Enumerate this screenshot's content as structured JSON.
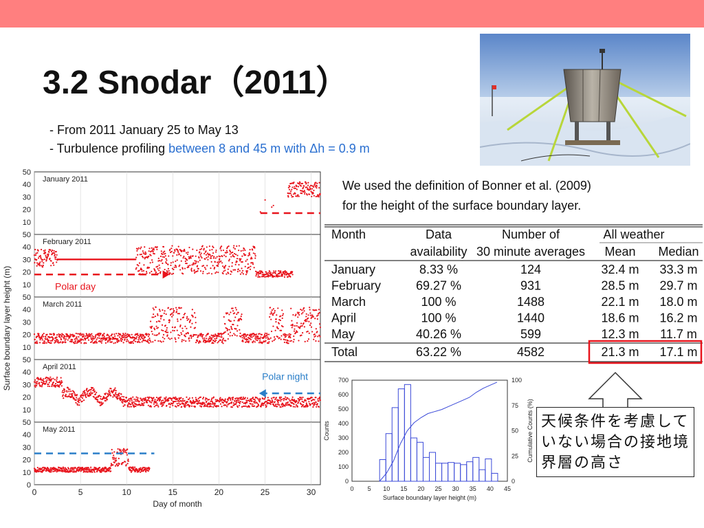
{
  "slide": {
    "title": "3.2 Snodar（2011）",
    "bullet1": "- From 2011 January 25 to May 13",
    "bullet2_prefix": "- Turbulence profiling ",
    "bullet2_accent": "between 8 and 45 m with Δh = 0.9 m",
    "note_line1": "We used the definition of Bonner et al. (2009)",
    "note_line2": "for the height of the surface boundary layer.",
    "callout": "天候条件を考慮していない場合の接地境界層の高さ",
    "colors": {
      "header": "#ff7f7f",
      "accent": "#2a6fd0",
      "data": "#e8141c",
      "callout_box": "#e8141c"
    }
  },
  "table": {
    "headers": {
      "month": "Month",
      "data_top": "Data",
      "data_bottom": "availability",
      "num_top": "Number of",
      "num_bottom": "30 minute averages",
      "all_weather": "All weather",
      "mean": "Mean",
      "median": "Median"
    },
    "rows": [
      [
        "January",
        "8.33 %",
        "124",
        "32.4 m",
        "33.3 m"
      ],
      [
        "February",
        "69.27 %",
        "931",
        "28.5 m",
        "29.7 m"
      ],
      [
        "March",
        "100 %",
        "1488",
        "22.1 m",
        "18.0 m"
      ],
      [
        "April",
        "100 %",
        "1440",
        "18.6 m",
        "16.2 m"
      ],
      [
        "May",
        "40.26 %",
        "599",
        "12.3 m",
        "11.7 m"
      ]
    ],
    "total": [
      "Total",
      "63.22 %",
      "4582",
      "21.3 m",
      "17.1 m"
    ]
  },
  "chart_data": [
    {
      "type": "scatter",
      "ylabel": "Surface boundary layer height (m)",
      "xlabel": "Day of month",
      "xlim": [
        0,
        31
      ],
      "ylim": [
        0,
        50
      ],
      "x_ticks": [
        "0",
        "5",
        "10",
        "15",
        "20",
        "25",
        "30"
      ],
      "y_ticks": [
        "0",
        "10",
        "20",
        "30",
        "40",
        "50"
      ],
      "annotations": {
        "polar_day": "Polar day",
        "polar_night": "Polar night"
      },
      "panels": [
        {
          "name": "January 2011",
          "range": [
            24.5,
            31
          ],
          "dashed_line": {
            "y": 17,
            "x": [
              24.5,
              31
            ],
            "color": "#e8141c"
          }
        },
        {
          "name": "February 2011",
          "range": [
            0,
            28
          ],
          "dashed_line": {
            "y": 18,
            "x": [
              0,
              14.5
            ],
            "color": "#e8141c"
          }
        },
        {
          "name": "March 2011",
          "range": [
            0,
            31
          ]
        },
        {
          "name": "April 2011",
          "range": [
            0,
            31
          ],
          "dashed_line": {
            "y": 23,
            "x": [
              24.5,
              31
            ],
            "color": "#2a7ec8"
          }
        },
        {
          "name": "May 2011",
          "range": [
            0,
            12.5
          ],
          "dashed_line": {
            "y": 25,
            "x": [
              0,
              13
            ],
            "color": "#2a7ec8"
          }
        }
      ]
    },
    {
      "type": "bar",
      "xlabel": "Surface boundary layer height (m)",
      "ylabel": "Counts",
      "y2label": "Cumulative Counts (%)",
      "xlim": [
        0,
        45
      ],
      "ylim": [
        0,
        700
      ],
      "y2lim": [
        0,
        100
      ],
      "x_ticks": [
        "0",
        "5",
        "10",
        "15",
        "20",
        "25",
        "30",
        "35",
        "40",
        "45"
      ],
      "y_ticks": [
        "0",
        "100",
        "200",
        "300",
        "400",
        "500",
        "600",
        "700"
      ],
      "y2_ticks": [
        "0",
        "25",
        "50",
        "75",
        "100"
      ],
      "bin_edges": [
        8,
        9.8,
        11.6,
        13.4,
        15.2,
        17.0,
        18.8,
        20.6,
        22.4,
        24.2,
        26.0,
        27.8,
        29.6,
        31.4,
        33.2,
        35.0,
        36.8,
        38.6,
        40.4,
        42.2
      ],
      "values": [
        150,
        330,
        510,
        640,
        670,
        300,
        270,
        165,
        200,
        125,
        125,
        130,
        125,
        115,
        135,
        165,
        80,
        155,
        55
      ],
      "cumulative_x": [
        8,
        10,
        12,
        14,
        16,
        18,
        20,
        22,
        24,
        26,
        28,
        30,
        32,
        34,
        36,
        38,
        40,
        42
      ],
      "cumulative": [
        0,
        8,
        20,
        37,
        50,
        58,
        63,
        67,
        69,
        71,
        74,
        77,
        80,
        83,
        88,
        92,
        95,
        98
      ]
    }
  ]
}
